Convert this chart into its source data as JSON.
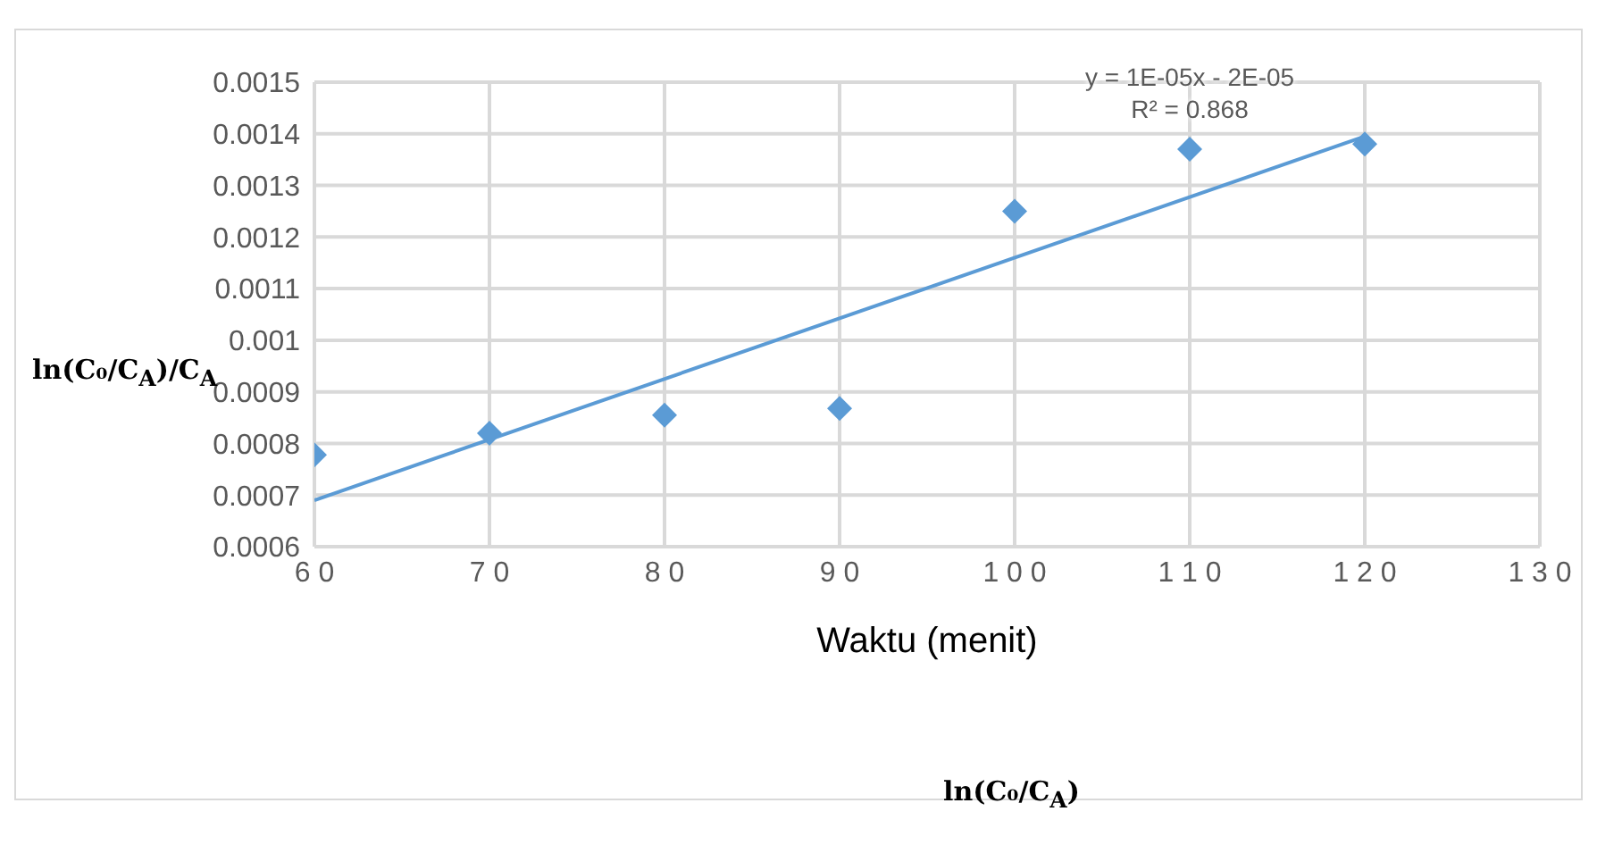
{
  "chart_data": {
    "type": "scatter",
    "xlabel": "Waktu (menit)",
    "ylabel": "ln(C₀/C$_{A}$)/C$_{A}$",
    "x": [
      60,
      70,
      80,
      90,
      100,
      110,
      120
    ],
    "series": [
      {
        "color": "#5b9bd5",
        "values": [
          0.000778,
          0.00082,
          0.000855,
          0.000868,
          0.00125,
          0.00137,
          0.00138
        ],
        "marker": "diamond"
      },
      {
        "type": "line",
        "color": "#5b9bd5",
        "x": [
          60,
          120
        ],
        "values": [
          0.00069,
          0.001395
        ],
        "marker": "none"
      }
    ],
    "xlim": [
      60,
      130
    ],
    "xticks": [
      60,
      70,
      80,
      90,
      100,
      110,
      120,
      130
    ],
    "ylim": [
      0.0006,
      0.0015
    ],
    "yticks": [
      0.0006,
      0.0007,
      0.0008,
      0.0009,
      0.001,
      0.0011,
      0.0012,
      0.0013,
      0.0014,
      0.0015
    ],
    "grid": true,
    "annotations": [
      "y = 1E-05x - 2E-05\nR² = 0.868",
      "ln(C₀/C$_{A}$)"
    ]
  }
}
